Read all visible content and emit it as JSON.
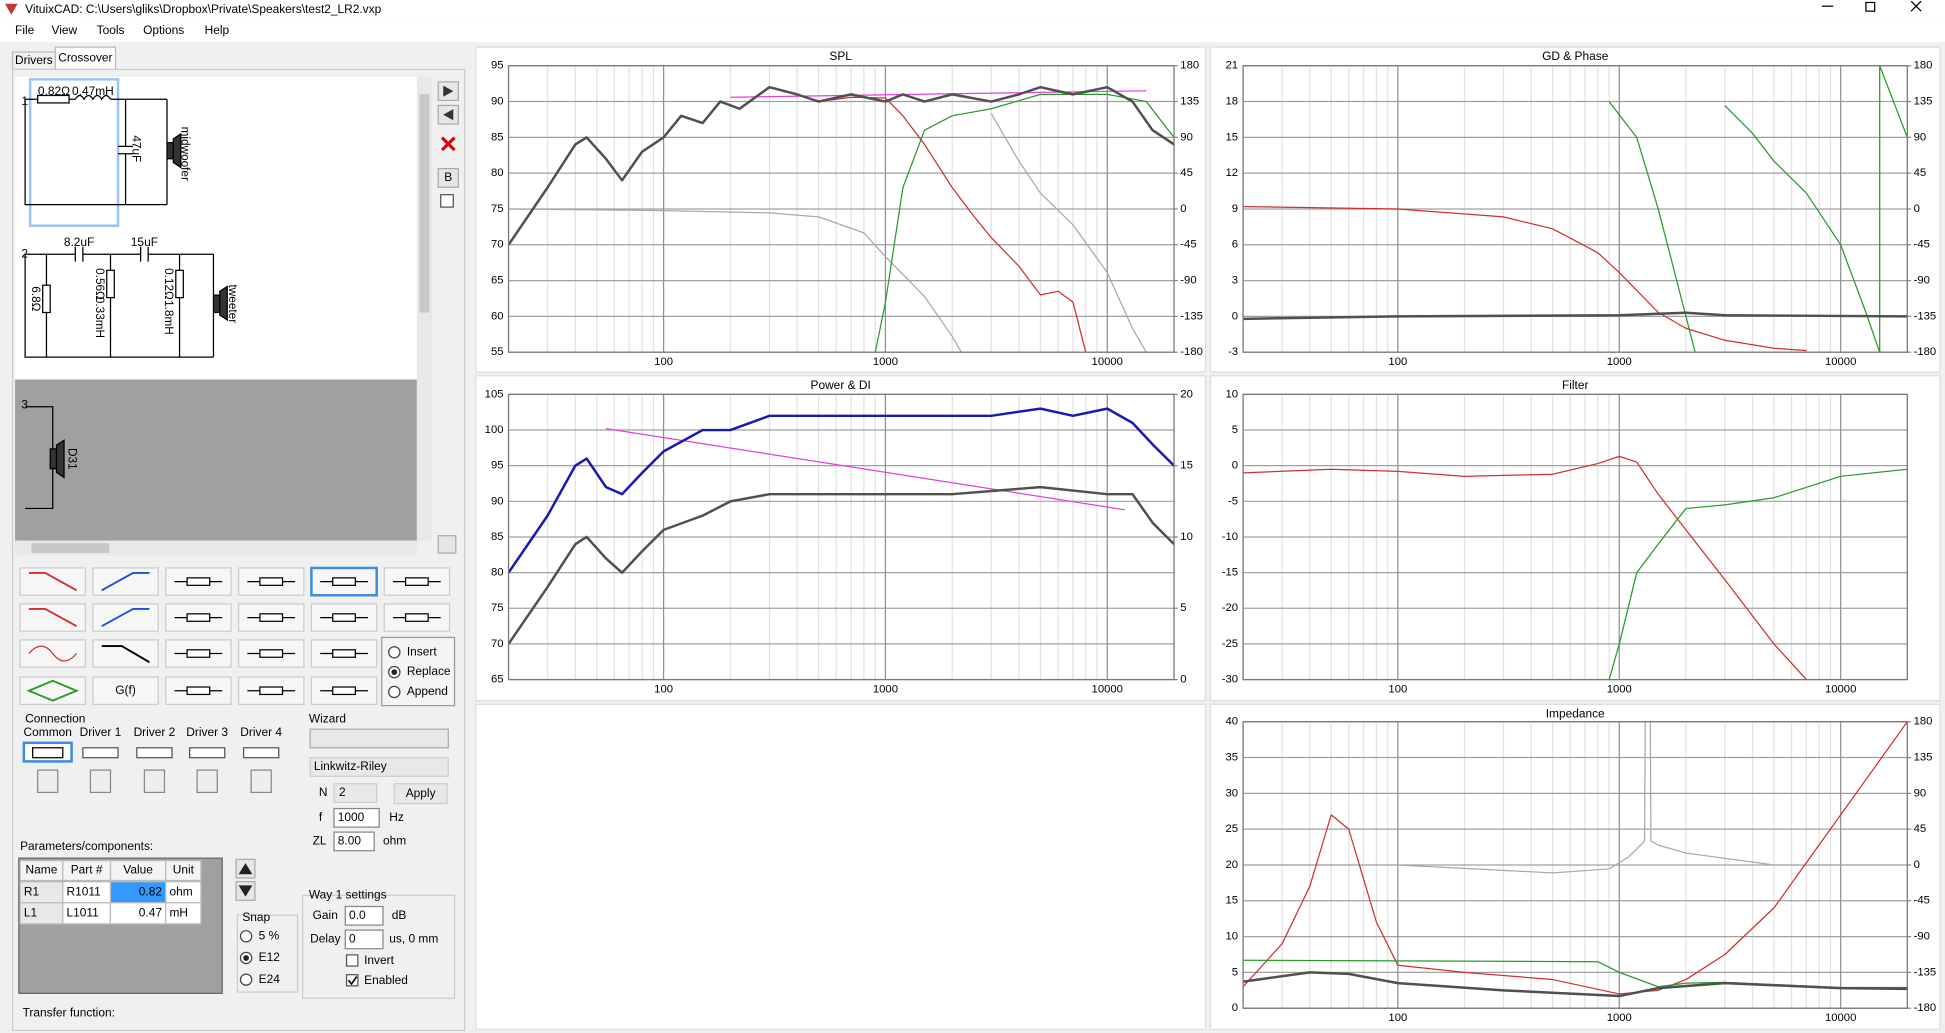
{
  "window": {
    "title": "VituixCAD: C:\\Users\\gliks\\Dropbox\\Private\\Speakers\\test2_LR2.vxp"
  },
  "menu": [
    "File",
    "View",
    "Tools",
    "Options",
    "Help"
  ],
  "tabs": [
    "Drivers",
    "Crossover"
  ],
  "schematic": {
    "way1": {
      "number": "1",
      "r": "0.82Ω",
      "l": "0.47mH",
      "c": "47uF",
      "driver": "midwoofer"
    },
    "way2": {
      "number": "2",
      "c1": "8.2uF",
      "c2": "15uF",
      "r1": "6.8Ω",
      "r2": "0.56Ω",
      "l1": "0.33mH",
      "r3": "0.12Ω",
      "l2": "1.8mH",
      "driver": "tweeter"
    },
    "way3": {
      "number": "3",
      "driver": "D31"
    }
  },
  "b_button": "B",
  "palette": {
    "gf": "G(f)",
    "modes": [
      "Insert",
      "Replace",
      "Append"
    ],
    "selected_mode": "Replace"
  },
  "connection": {
    "label": "Connection",
    "columns": [
      "Common",
      "Driver 1",
      "Driver 2",
      "Driver 3",
      "Driver 4"
    ]
  },
  "wizard": {
    "label": "Wizard",
    "type": "Linkwitz-Riley",
    "n_label": "N",
    "n": "2",
    "apply": "Apply",
    "f_label": "f",
    "f": "1000",
    "f_unit": "Hz",
    "zl_label": "ZL",
    "zl": "8.00",
    "zl_unit": "ohm"
  },
  "parameters": {
    "label": "Parameters/components:",
    "headers": [
      "Name",
      "Part #",
      "Value",
      "Unit"
    ],
    "rows": [
      [
        "R1",
        "R1011",
        "0.82",
        "ohm"
      ],
      [
        "L1",
        "L1011",
        "0.47",
        "mH"
      ]
    ]
  },
  "snap": {
    "label": "Snap",
    "options": [
      "5 %",
      "E12",
      "E24"
    ],
    "selected": "E12"
  },
  "way_settings": {
    "label": "Way 1 settings",
    "gain_label": "Gain",
    "gain": "0.0",
    "gain_unit": "dB",
    "delay_label": "Delay",
    "delay": "0",
    "delay_unit": "us, 0 mm",
    "invert": "Invert",
    "enabled": "Enabled",
    "enabled_checked": true
  },
  "transfer_label": "Transfer function:",
  "xgrid": [
    20,
    30,
    40,
    50,
    60,
    70,
    80,
    90,
    200,
    300,
    400,
    500,
    600,
    700,
    800,
    900,
    2000,
    3000,
    4000,
    5000,
    6000,
    7000,
    8000,
    9000,
    20000
  ],
  "charts": [
    {
      "type": "line",
      "title": "SPL",
      "log_x": true,
      "xlim": [
        20,
        20000
      ],
      "xticks": [
        100,
        1000,
        10000
      ],
      "ylim": [
        55,
        95
      ],
      "yticks": [
        55,
        60,
        65,
        70,
        75,
        80,
        85,
        90,
        95
      ],
      "y2lim": [
        -180,
        180
      ],
      "y2ticks": [
        -180,
        -135,
        -90,
        -45,
        0,
        45,
        90,
        135,
        180
      ],
      "series": [
        {
          "color": "#a8a8a8",
          "width": 1,
          "axis": "y2",
          "x": [
            20,
            100,
            300,
            500,
            800,
            1000,
            1500,
            2000,
            2200,
            2200,
            3000,
            4000,
            5000,
            7000,
            10000,
            13000,
            15000
          ],
          "values": [
            0,
            -2,
            -5,
            -10,
            -30,
            -60,
            -110,
            -160,
            -180,
            null,
            120,
            60,
            20,
            -20,
            -80,
            -150,
            -180
          ]
        },
        {
          "color": "#d03030",
          "width": 1,
          "x": [
            500,
            700,
            1000,
            1200,
            1500,
            2000,
            2500,
            3000,
            4000,
            5000,
            6000,
            7000,
            8000
          ],
          "values": [
            90,
            90.6,
            90.5,
            88,
            84,
            78,
            74,
            71,
            67,
            63,
            63.5,
            62,
            55
          ]
        },
        {
          "color": "#2a9a2a",
          "width": 1,
          "x": [
            900,
            1000,
            1200,
            1500,
            2000,
            3000,
            5000,
            7000,
            10000,
            15000,
            20000
          ],
          "values": [
            55,
            62,
            78,
            86,
            88,
            89,
            91,
            91,
            91,
            90,
            85
          ]
        },
        {
          "color": "#e040e0",
          "width": 1,
          "x": [
            200,
            15000
          ],
          "values": [
            90.6,
            91.5
          ]
        },
        {
          "color": "#505050",
          "width": 2,
          "x": [
            20,
            30,
            40,
            45,
            55,
            65,
            80,
            100,
            120,
            150,
            180,
            220,
            300,
            400,
            500,
            700,
            1000,
            1200,
            1500,
            2000,
            3000,
            4000,
            5000,
            7000,
            10000,
            13000,
            16000,
            20000
          ],
          "values": [
            70,
            78,
            84,
            85,
            82,
            79,
            83,
            85,
            88,
            87,
            90,
            89,
            92,
            91,
            90,
            91,
            90,
            91,
            90,
            91,
            90,
            91,
            92,
            91,
            92,
            90,
            86,
            84
          ]
        }
      ]
    },
    {
      "type": "line",
      "title": "GD & Phase",
      "log_x": true,
      "xlim": [
        20,
        20000
      ],
      "xticks": [
        100,
        1000,
        10000
      ],
      "ylim": [
        -3,
        21
      ],
      "yticks": [
        -3,
        0,
        3,
        6,
        9,
        12,
        15,
        18,
        21
      ],
      "y2lim": [
        -180,
        180
      ],
      "y2ticks": [
        -180,
        -135,
        -90,
        -45,
        0,
        45,
        90,
        135,
        180
      ],
      "series": [
        {
          "color": "#d03030",
          "width": 1,
          "axis": "y2",
          "x": [
            20,
            100,
            300,
            500,
            800,
            1000,
            1500,
            2000,
            3000,
            5000,
            7000
          ],
          "values": [
            3,
            0,
            -10,
            -25,
            -55,
            -80,
            -130,
            -150,
            -165,
            -175,
            -178
          ]
        },
        {
          "color": "#2a9a2a",
          "width": 1,
          "axis": "y2",
          "x": [
            900,
            1200,
            1500,
            2000,
            2200,
            2200,
            3000,
            4000,
            5000,
            7000,
            10000,
            13000,
            15000,
            15000,
            20000
          ],
          "values": [
            135,
            90,
            0,
            -135,
            -180,
            null,
            130,
            95,
            60,
            20,
            -45,
            -130,
            -180,
            180,
            90
          ]
        },
        {
          "color": "#505050",
          "width": 2,
          "x": [
            20,
            100,
            1000,
            2000,
            3000,
            20000
          ],
          "values": [
            -0.2,
            0,
            0.1,
            0.3,
            0.1,
            0
          ]
        }
      ]
    },
    {
      "type": "line",
      "title": "Power & DI",
      "log_x": true,
      "xlim": [
        20,
        20000
      ],
      "xticks": [
        100,
        1000,
        10000
      ],
      "ylim": [
        65,
        105
      ],
      "yticks": [
        65,
        70,
        75,
        80,
        85,
        90,
        95,
        100,
        105
      ],
      "y2lim": [
        0,
        20
      ],
      "y2ticks": [
        0,
        5,
        10,
        15,
        20
      ],
      "series": [
        {
          "color": "#e040e0",
          "width": 1,
          "axis": "y2",
          "x": [
            55,
            12000
          ],
          "values": [
            17.6,
            11.9
          ]
        },
        {
          "color": "#505050",
          "width": 2,
          "x": [
            20,
            30,
            40,
            45,
            55,
            65,
            80,
            100,
            150,
            200,
            300,
            500,
            1000,
            2000,
            5000,
            10000,
            13000,
            16000,
            20000
          ],
          "values": [
            70,
            78,
            84,
            85,
            82,
            80,
            83,
            86,
            88,
            90,
            91,
            91,
            91,
            91,
            92,
            91,
            91,
            87,
            84
          ]
        },
        {
          "color": "#1a1ab0",
          "width": 2,
          "x": [
            20,
            30,
            40,
            45,
            55,
            65,
            80,
            100,
            150,
            200,
            300,
            400,
            500,
            700,
            1000,
            2000,
            3000,
            5000,
            7000,
            10000,
            13000,
            16000,
            20000
          ],
          "values": [
            80,
            88,
            95,
            96,
            92,
            91,
            94,
            97,
            100,
            100,
            102,
            102,
            102,
            102,
            102,
            102,
            102,
            103,
            102,
            103,
            101,
            98,
            95
          ]
        }
      ]
    },
    {
      "type": "line",
      "title": "Filter",
      "log_x": true,
      "xlim": [
        20,
        20000
      ],
      "xticks": [
        100,
        1000,
        10000
      ],
      "ylim": [
        -30,
        10
      ],
      "yticks": [
        -30,
        -25,
        -20,
        -15,
        -10,
        -5,
        0,
        5,
        10
      ],
      "series": [
        {
          "color": "#d03030",
          "width": 1,
          "x": [
            20,
            50,
            100,
            200,
            500,
            800,
            1000,
            1200,
            1500,
            2000,
            3000,
            5000,
            7000
          ],
          "values": [
            -1,
            -0.5,
            -0.8,
            -1.5,
            -1.2,
            0.3,
            1.3,
            0.5,
            -4,
            -9,
            -16,
            -25,
            -30
          ]
        },
        {
          "color": "#2a9a2a",
          "width": 1,
          "x": [
            900,
            1000,
            1200,
            1500,
            2000,
            3000,
            5000,
            10000,
            20000
          ],
          "values": [
            -30,
            -25,
            -15,
            -11,
            -6,
            -5.5,
            -4.5,
            -1.5,
            -0.5
          ]
        }
      ]
    },
    {
      "type": "line",
      "title": "Impedance",
      "log_x": true,
      "xlim": [
        20,
        20000
      ],
      "xticks": [
        100,
        1000,
        10000
      ],
      "ylim": [
        0,
        40
      ],
      "yticks": [
        0,
        5,
        10,
        15,
        20,
        25,
        30,
        35,
        40
      ],
      "y2lim": [
        -180,
        180
      ],
      "y2ticks": [
        -180,
        -135,
        -90,
        -45,
        0,
        45,
        90,
        135,
        180
      ],
      "series": [
        {
          "color": "#a8a8a8",
          "width": 1,
          "axis": "y2",
          "x": [
            20,
            100,
            500,
            900,
            1100,
            1300,
            1310,
            1380,
            1390,
            1500,
            2000,
            5000,
            20000
          ],
          "values": [
            0,
            0,
            -10,
            -5,
            10,
            30,
            180,
            180,
            30,
            25,
            15,
            0,
            0
          ]
        },
        {
          "color": "#d03030",
          "width": 1,
          "x": [
            20,
            30,
            40,
            50,
            60,
            80,
            100,
            200,
            500,
            1000,
            1500,
            2000,
            3000,
            5000,
            10000,
            20000
          ],
          "values": [
            3,
            9,
            17,
            27,
            25,
            12,
            6,
            5,
            4,
            2,
            2.5,
            4,
            7.5,
            14,
            27,
            40
          ]
        },
        {
          "color": "#2a9a2a",
          "width": 1,
          "x": [
            20,
            800,
            1000,
            1500,
            2000,
            3000,
            10000,
            20000
          ],
          "values": [
            6.7,
            6.5,
            5,
            3,
            3.5,
            3.6,
            2.9,
            2.9
          ]
        },
        {
          "color": "#505050",
          "width": 2,
          "x": [
            20,
            40,
            60,
            100,
            300,
            1000,
            1500,
            3000,
            10000,
            20000
          ],
          "values": [
            3.7,
            5,
            4.8,
            3.5,
            2.5,
            1.7,
            2.8,
            3.5,
            2.8,
            2.7
          ]
        }
      ]
    }
  ]
}
